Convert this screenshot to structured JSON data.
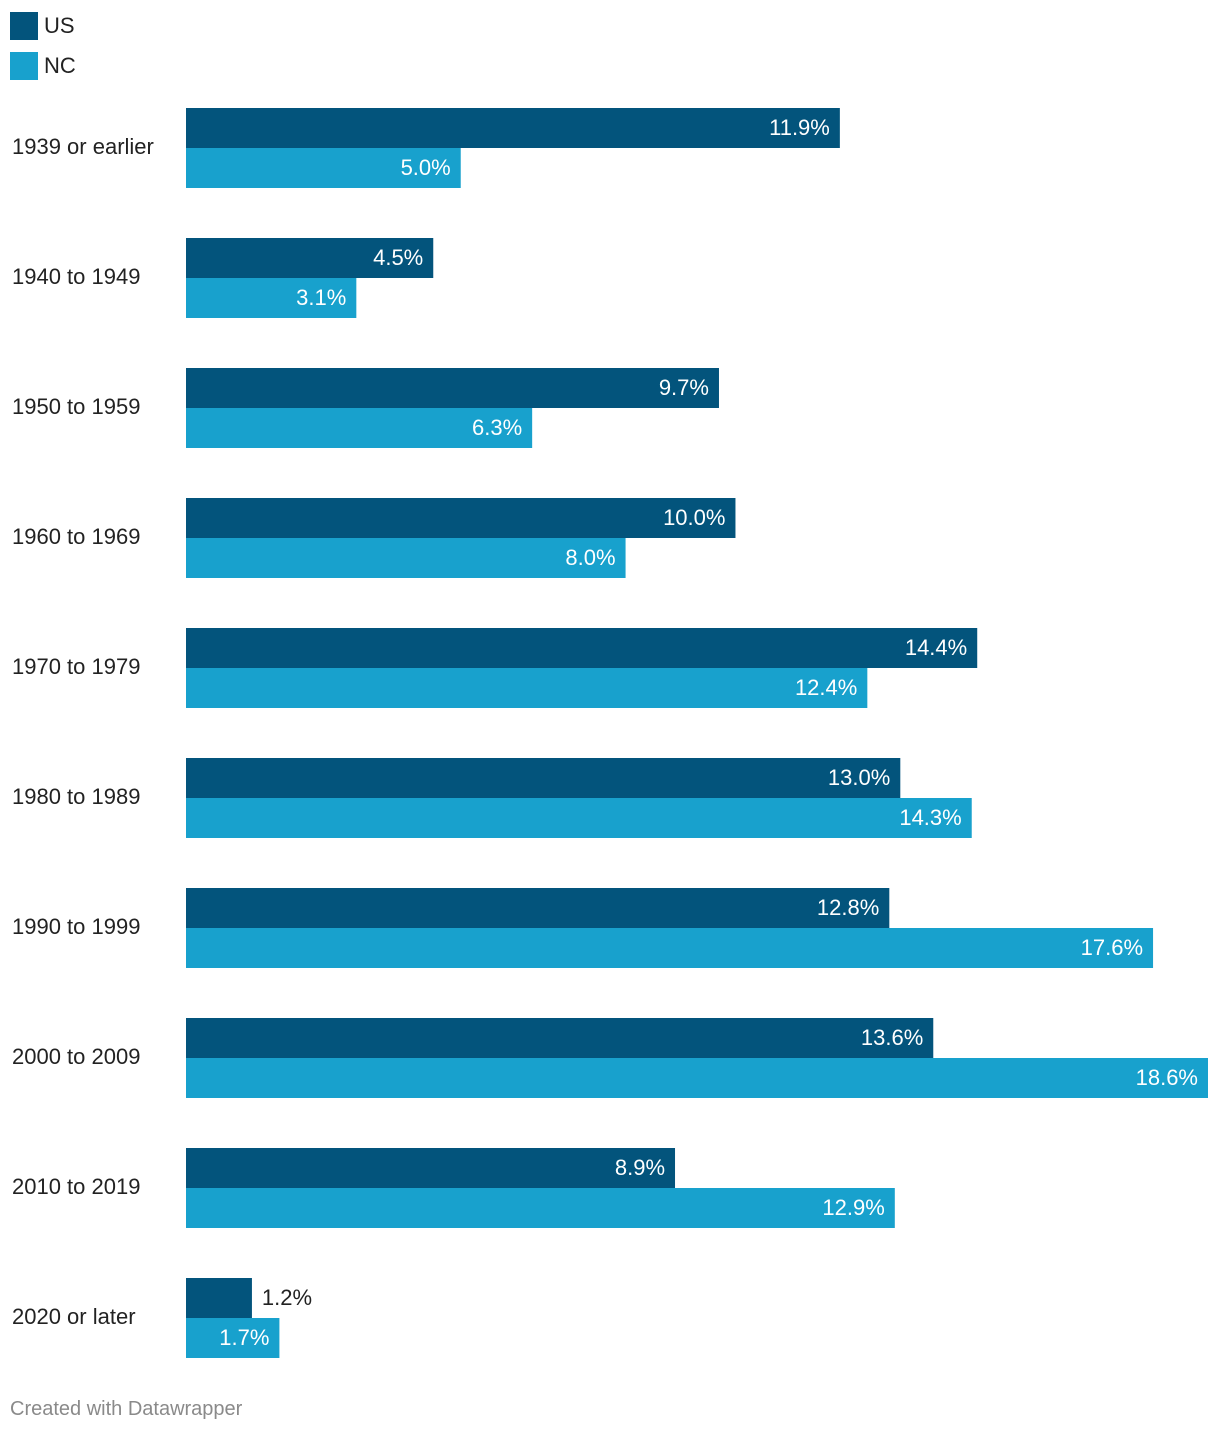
{
  "chart_data": {
    "type": "bar",
    "orientation": "horizontal",
    "title": "",
    "xlabel": "",
    "ylabel": "",
    "xlim": [
      0,
      18.6
    ],
    "grid": false,
    "legend_position": "top-left",
    "categories": [
      "1939 or earlier",
      "1940 to 1949",
      "1950 to 1959",
      "1960 to 1969",
      "1970 to 1979",
      "1980 to 1989",
      "1990 to 1999",
      "2000 to 2009",
      "2010 to 2019",
      "2020 or later"
    ],
    "series": [
      {
        "name": "US",
        "color": "#03547c",
        "values": [
          11.9,
          4.5,
          9.7,
          10.0,
          14.4,
          13.0,
          12.8,
          13.6,
          8.9,
          1.2
        ],
        "labels": [
          "11.9%",
          "4.5%",
          "9.7%",
          "10.0%",
          "14.4%",
          "13.0%",
          "12.8%",
          "13.6%",
          "8.9%",
          "1.2%"
        ]
      },
      {
        "name": "NC",
        "color": "#18a1cd",
        "values": [
          5.0,
          3.1,
          6.3,
          8.0,
          12.4,
          14.3,
          17.6,
          18.6,
          12.9,
          1.7
        ],
        "labels": [
          "5.0%",
          "3.1%",
          "6.3%",
          "8.0%",
          "12.4%",
          "14.3%",
          "17.6%",
          "18.6%",
          "12.9%",
          "1.7%"
        ]
      }
    ]
  },
  "footer": {
    "credit": "Created with Datawrapper"
  }
}
